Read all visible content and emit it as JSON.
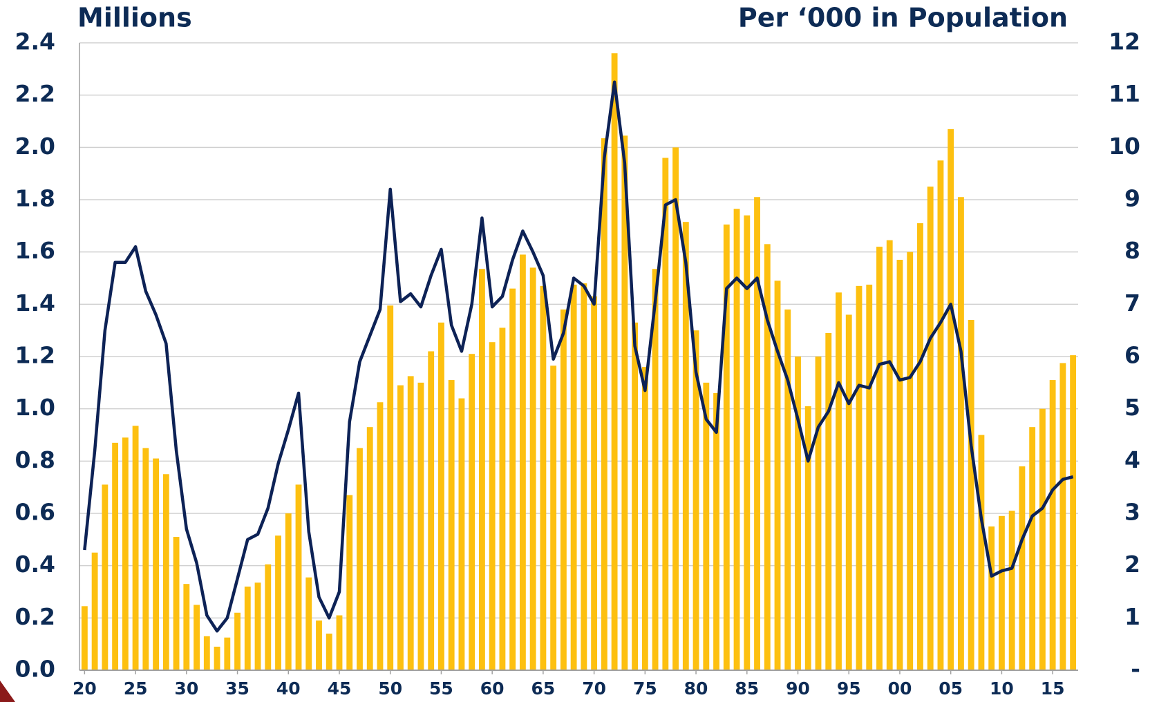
{
  "chart_data": {
    "type": "combo",
    "ylabel": "Millions",
    "y2label": "Per ‘000 in Population",
    "categories": [
      "20",
      null,
      null,
      null,
      null,
      "25",
      null,
      null,
      null,
      null,
      "30",
      null,
      null,
      null,
      null,
      "35",
      null,
      null,
      null,
      null,
      "40",
      null,
      null,
      null,
      null,
      "45",
      null,
      null,
      null,
      null,
      "50",
      null,
      null,
      null,
      null,
      "55",
      null,
      null,
      null,
      null,
      "60",
      null,
      null,
      null,
      null,
      "65",
      null,
      null,
      null,
      null,
      "70",
      null,
      null,
      null,
      null,
      "75",
      null,
      null,
      null,
      null,
      "80",
      null,
      null,
      null,
      null,
      "85",
      null,
      null,
      null,
      null,
      "90",
      null,
      null,
      null,
      null,
      "95",
      null,
      null,
      null,
      null,
      "00",
      null,
      null,
      null,
      null,
      "05",
      null,
      null,
      null,
      null,
      "10",
      null,
      null,
      null,
      null,
      "15",
      null,
      null
    ],
    "series": [
      {
        "type": "bar",
        "color": "#fdc010",
        "values": [
          0.245,
          0.45,
          0.71,
          0.87,
          0.89,
          0.935,
          0.85,
          0.81,
          0.75,
          0.51,
          0.33,
          0.25,
          0.13,
          0.09,
          0.125,
          0.22,
          0.32,
          0.335,
          0.405,
          0.515,
          0.6,
          0.71,
          0.355,
          0.19,
          0.14,
          0.21,
          0.67,
          0.85,
          0.93,
          1.025,
          1.395,
          1.09,
          1.125,
          1.1,
          1.22,
          1.33,
          1.11,
          1.04,
          1.21,
          1.535,
          1.255,
          1.31,
          1.46,
          1.59,
          1.54,
          1.47,
          1.165,
          1.38,
          1.475,
          1.48,
          1.43,
          2.035,
          2.36,
          2.045,
          1.33,
          1.16,
          1.535,
          1.96,
          2.0,
          1.715,
          1.3,
          1.1,
          1.06,
          1.705,
          1.765,
          1.74,
          1.81,
          1.63,
          1.49,
          1.38,
          1.2,
          1.01,
          1.2,
          1.29,
          1.445,
          1.36,
          1.47,
          1.475,
          1.62,
          1.645,
          1.57,
          1.6,
          1.71,
          1.85,
          1.95,
          2.07,
          1.81,
          1.34,
          0.9,
          0.55,
          0.59,
          0.61,
          0.78,
          0.93,
          1.0,
          1.11,
          1.175,
          1.205
        ]
      },
      {
        "type": "line",
        "axis": "y2",
        "color": "#0d2256",
        "values": [
          2.3,
          4.2,
          6.5,
          7.8,
          7.8,
          8.1,
          7.25,
          6.8,
          6.25,
          4.2,
          2.7,
          2.05,
          1.05,
          0.75,
          1.0,
          1.75,
          2.5,
          2.6,
          3.1,
          3.95,
          4.6,
          5.3,
          2.65,
          1.4,
          1.0,
          1.5,
          4.75,
          5.9,
          6.4,
          6.9,
          9.2,
          7.05,
          7.2,
          6.95,
          7.55,
          8.05,
          6.6,
          6.1,
          7.0,
          8.65,
          6.95,
          7.15,
          7.85,
          8.4,
          8.0,
          7.55,
          5.95,
          6.45,
          7.5,
          7.35,
          7.0,
          9.8,
          11.25,
          9.7,
          6.2,
          5.35,
          7.05,
          8.9,
          9.0,
          7.8,
          5.7,
          4.8,
          4.55,
          7.3,
          7.5,
          7.3,
          7.5,
          6.7,
          6.1,
          5.55,
          4.8,
          4.0,
          4.65,
          4.95,
          5.5,
          5.1,
          5.45,
          5.4,
          5.85,
          5.9,
          5.55,
          5.6,
          5.9,
          6.35,
          6.65,
          7.0,
          6.1,
          4.3,
          2.9,
          1.8,
          1.9,
          1.95,
          2.5,
          2.95,
          3.1,
          3.45,
          3.65,
          3.7
        ]
      }
    ],
    "ylim": [
      0,
      2.4
    ],
    "yticks": [
      {
        "value": 0,
        "label": "0.0"
      },
      0.2,
      0.4,
      0.6,
      0.8,
      {
        "value": 1,
        "label": "1.0"
      },
      1.2,
      1.4,
      1.6,
      1.8,
      {
        "value": 2,
        "label": "2.0"
      },
      2.2,
      2.4
    ],
    "y2lim": [
      0,
      12
    ],
    "y2ticks": [
      {
        "value": 0,
        "label": "-"
      },
      1,
      2,
      3,
      4,
      5,
      6,
      7,
      8,
      9,
      10,
      11,
      12
    ],
    "grid": true
  }
}
